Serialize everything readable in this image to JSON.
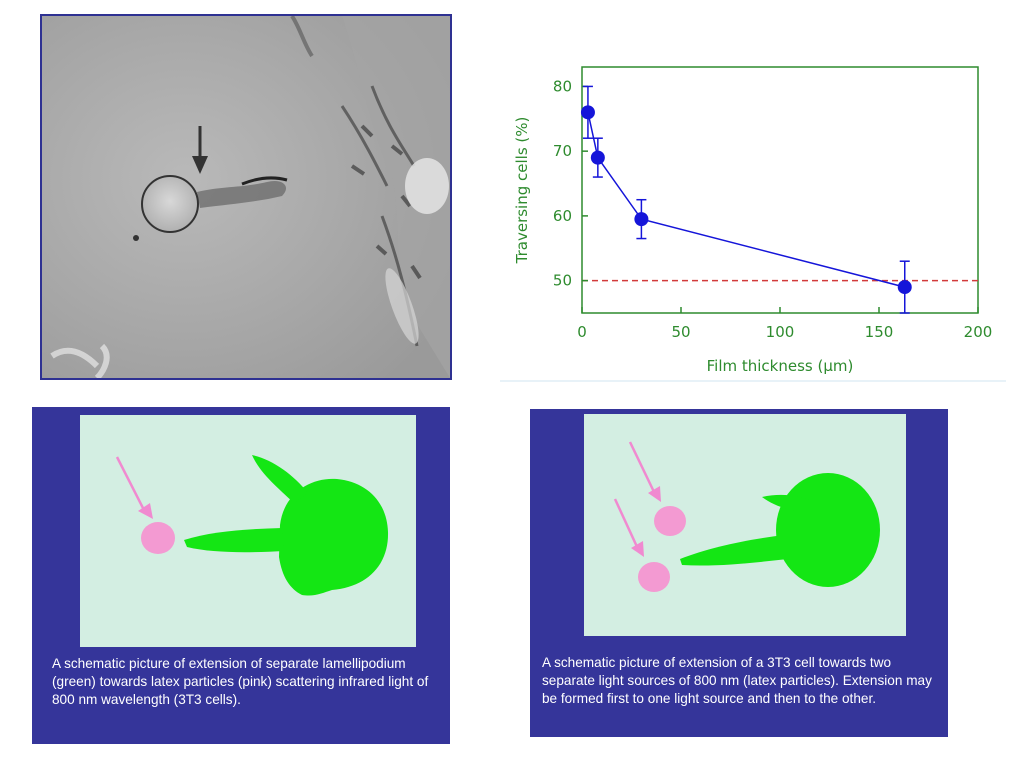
{
  "photo": {
    "description_icon": "micrograph-with-circled-particle-and-arrow"
  },
  "chart_data": {
    "type": "line",
    "title": "",
    "xlabel": "Film  thickness (μm)",
    "ylabel": "Traversing cells   (%)",
    "xlim": [
      0,
      200
    ],
    "ylim": [
      45,
      83
    ],
    "xticks": [
      "0",
      "50",
      "100",
      "150",
      "200"
    ],
    "yticks": [
      "50",
      "60",
      "70",
      "80"
    ],
    "series": [
      {
        "x": [
          3,
          8,
          30,
          163
        ],
        "y": [
          76,
          69,
          59.5,
          49
        ],
        "err": [
          4,
          3,
          3,
          4
        ],
        "color": "#1515d9"
      }
    ],
    "reference_line": {
      "y": 50,
      "color": "#d23b3b",
      "style": "dashed"
    },
    "axis_color": "#2e8b2e",
    "grid": false
  },
  "captions": {
    "left": "A schematic picture of extension of separate lamellipodium (green) towards latex particles (pink) scattering infrared light of 800 nm wavelength (3T3 cells).",
    "right": "A schematic picture of extension of a 3T3 cell towards two separate light sources of 800 nm (latex particles). Extension may be formed first to one light source and then to the other."
  },
  "colors": {
    "panel_bg": "#35359a",
    "schematic_bg": "#d3eee2",
    "cell_green": "#14e614",
    "particle_pink": "#f39ad2",
    "arrow_pink": "#f08ad0"
  }
}
